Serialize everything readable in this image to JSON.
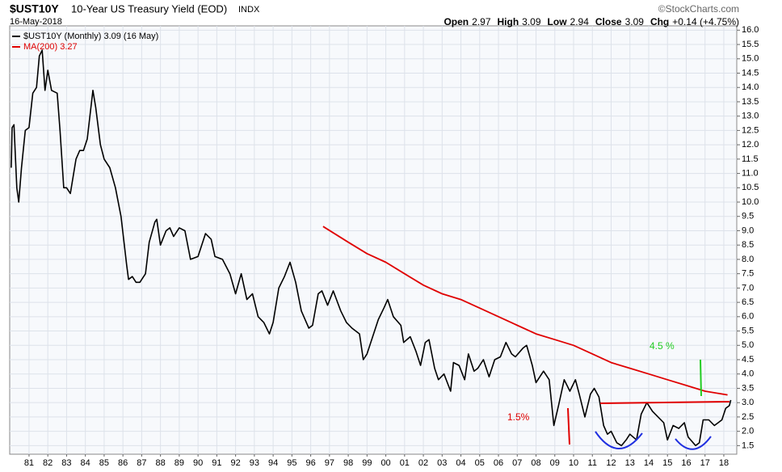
{
  "chart_data": {
    "type": "line",
    "symbol": "$UST10Y",
    "title": "10-Year US Treasury Yield (EOD)",
    "exchange": "INDX",
    "date": "16-May-2018",
    "watermark": "©StockCharts.com",
    "quote": [
      {
        "label": "Open",
        "value": "2.97"
      },
      {
        "label": "High",
        "value": "3.09"
      },
      {
        "label": "Low",
        "value": "2.94"
      },
      {
        "label": "Close",
        "value": "3.09"
      },
      {
        "label": "Chg",
        "value": "+0.14 (+4.75%)"
      }
    ],
    "annotations": [
      "1.5%",
      "4.5 %"
    ],
    "grid": true,
    "xlim": [
      1979.97,
      2018.69
    ],
    "ylim": [
      1.2,
      16.15
    ],
    "xticks": [
      {
        "value": 1981,
        "label": "81"
      },
      {
        "value": 1982,
        "label": "82"
      },
      {
        "value": 1983,
        "label": "83"
      },
      {
        "value": 1984,
        "label": "84"
      },
      {
        "value": 1985,
        "label": "85"
      },
      {
        "value": 1986,
        "label": "86"
      },
      {
        "value": 1987,
        "label": "87"
      },
      {
        "value": 1988,
        "label": "88"
      },
      {
        "value": 1989,
        "label": "89"
      },
      {
        "value": 1990,
        "label": "90"
      },
      {
        "value": 1991,
        "label": "91"
      },
      {
        "value": 1992,
        "label": "92"
      },
      {
        "value": 1993,
        "label": "93"
      },
      {
        "value": 1994,
        "label": "94"
      },
      {
        "value": 1995,
        "label": "95"
      },
      {
        "value": 1996,
        "label": "96"
      },
      {
        "value": 1997,
        "label": "97"
      },
      {
        "value": 1998,
        "label": "98"
      },
      {
        "value": 1999,
        "label": "99"
      },
      {
        "value": 2000,
        "label": "00"
      },
      {
        "value": 2001,
        "label": "01"
      },
      {
        "value": 2002,
        "label": "02"
      },
      {
        "value": 2003,
        "label": "03"
      },
      {
        "value": 2004,
        "label": "04"
      },
      {
        "value": 2005,
        "label": "05"
      },
      {
        "value": 2006,
        "label": "06"
      },
      {
        "value": 2007,
        "label": "07"
      },
      {
        "value": 2008,
        "label": "08"
      },
      {
        "value": 2009,
        "label": "09"
      },
      {
        "value": 2010,
        "label": "10"
      },
      {
        "value": 2011,
        "label": "11"
      },
      {
        "value": 2012,
        "label": "12"
      },
      {
        "value": 2013,
        "label": "13"
      },
      {
        "value": 2014,
        "label": "14"
      },
      {
        "value": 2015,
        "label": "15"
      },
      {
        "value": 2016,
        "label": "16"
      },
      {
        "value": 2017,
        "label": "17"
      },
      {
        "value": 2018,
        "label": "18"
      }
    ],
    "yticks": [
      1.5,
      {
        "value": 2,
        "label": "2.0"
      },
      2.5,
      {
        "value": 3,
        "label": "3.0"
      },
      3.5,
      {
        "value": 4,
        "label": "4.0"
      },
      4.5,
      {
        "value": 5,
        "label": "5.0"
      },
      5.5,
      {
        "value": 6,
        "label": "6.0"
      },
      6.5,
      {
        "value": 7,
        "label": "7.0"
      },
      7.5,
      {
        "value": 8,
        "label": "8.0"
      },
      8.5,
      {
        "value": 9,
        "label": "9.0"
      },
      9.5,
      {
        "value": 10,
        "label": "10.0"
      },
      10.5,
      {
        "value": 11,
        "label": "11.0"
      },
      11.5,
      {
        "value": 12,
        "label": "12.0"
      },
      12.5,
      {
        "value": 13,
        "label": "13.0"
      },
      13.5,
      {
        "value": 14,
        "label": "14.0"
      },
      14.5,
      {
        "value": 15,
        "label": "15.0"
      },
      15.5,
      {
        "value": 16,
        "label": "16.0"
      }
    ],
    "series": [
      {
        "name": "$UST10Y (Monthly) 3.09 (16 May)",
        "color": "#000000",
        "x": [
          1980.05,
          1980.1,
          1980.2,
          1980.35,
          1980.45,
          1980.6,
          1980.8,
          1981.0,
          1981.2,
          1981.4,
          1981.55,
          1981.7,
          1981.85,
          1982.0,
          1982.2,
          1982.5,
          1982.65,
          1982.85,
          1983.0,
          1983.2,
          1983.5,
          1983.7,
          1983.9,
          1984.1,
          1984.4,
          1984.55,
          1984.8,
          1985.0,
          1985.3,
          1985.6,
          1985.9,
          1986.2,
          1986.3,
          1986.5,
          1986.7,
          1986.9,
          1987.2,
          1987.4,
          1987.7,
          1987.8,
          1988.0,
          1988.3,
          1988.5,
          1988.7,
          1989.0,
          1989.3,
          1989.6,
          1990.0,
          1990.4,
          1990.7,
          1990.9,
          1991.3,
          1991.7,
          1992.0,
          1992.3,
          1992.6,
          1992.9,
          1993.2,
          1993.5,
          1993.8,
          1994.0,
          1994.3,
          1994.6,
          1994.9,
          1995.2,
          1995.5,
          1995.9,
          1996.1,
          1996.4,
          1996.6,
          1996.9,
          1997.2,
          1997.6,
          1997.9,
          1998.2,
          1998.6,
          1998.8,
          1999.0,
          1999.3,
          1999.6,
          1999.9,
          2000.1,
          2000.4,
          2000.8,
          2000.95,
          2001.3,
          2001.6,
          2001.85,
          2002.1,
          2002.3,
          2002.6,
          2002.8,
          2003.1,
          2003.45,
          2003.6,
          2003.9,
          2004.2,
          2004.4,
          2004.7,
          2004.9,
          2005.2,
          2005.5,
          2005.8,
          2006.1,
          2006.4,
          2006.7,
          2006.9,
          2007.3,
          2007.5,
          2007.8,
          2008.0,
          2008.4,
          2008.7,
          2008.95,
          2009.2,
          2009.5,
          2009.8,
          2010.1,
          2010.3,
          2010.6,
          2010.9,
          2011.1,
          2011.35,
          2011.6,
          2011.8,
          2012.0,
          2012.3,
          2012.55,
          2012.8,
          2013.0,
          2013.35,
          2013.6,
          2013.9,
          2014.2,
          2014.5,
          2014.8,
          2015.0,
          2015.3,
          2015.6,
          2015.9,
          2016.1,
          2016.5,
          2016.7,
          2016.9,
          2017.2,
          2017.5,
          2017.7,
          2017.9,
          2018.1,
          2018.3,
          2018.37
        ],
        "values": [
          11.2,
          12.6,
          12.7,
          10.5,
          10.0,
          11.2,
          12.5,
          12.6,
          13.8,
          14.0,
          15.1,
          15.3,
          13.9,
          14.6,
          13.9,
          13.8,
          12.5,
          10.5,
          10.5,
          10.3,
          11.5,
          11.8,
          11.8,
          12.2,
          13.9,
          13.3,
          12.0,
          11.5,
          11.2,
          10.5,
          9.5,
          7.8,
          7.3,
          7.4,
          7.2,
          7.2,
          7.5,
          8.6,
          9.3,
          9.4,
          8.5,
          9.0,
          9.1,
          8.8,
          9.1,
          9.0,
          8.0,
          8.1,
          8.9,
          8.7,
          8.1,
          8.0,
          7.5,
          6.8,
          7.5,
          6.6,
          6.8,
          6.0,
          5.8,
          5.4,
          5.8,
          7.0,
          7.4,
          7.9,
          7.2,
          6.2,
          5.6,
          5.7,
          6.8,
          6.9,
          6.4,
          6.9,
          6.2,
          5.8,
          5.6,
          5.4,
          4.5,
          4.7,
          5.3,
          5.9,
          6.3,
          6.6,
          6.0,
          5.7,
          5.1,
          5.3,
          4.8,
          4.3,
          5.1,
          5.2,
          4.2,
          3.8,
          4.0,
          3.4,
          4.4,
          4.3,
          3.8,
          4.7,
          4.1,
          4.2,
          4.5,
          3.9,
          4.5,
          4.6,
          5.1,
          4.7,
          4.6,
          4.9,
          5.0,
          4.3,
          3.7,
          4.1,
          3.8,
          2.2,
          2.9,
          3.8,
          3.4,
          3.8,
          3.3,
          2.5,
          3.3,
          3.5,
          3.2,
          2.2,
          1.9,
          2.0,
          1.6,
          1.5,
          1.7,
          1.9,
          1.7,
          2.6,
          3.0,
          2.7,
          2.5,
          2.3,
          1.7,
          2.2,
          2.1,
          2.3,
          1.8,
          1.5,
          1.6,
          2.4,
          2.4,
          2.2,
          2.3,
          2.4,
          2.8,
          2.9,
          3.09
        ]
      },
      {
        "name": "MA(200) 3.27",
        "color": "#e00000",
        "x": [
          1996.66,
          1998,
          1999,
          2000,
          2001,
          2002,
          2003,
          2004,
          2005,
          2006,
          2007,
          2008,
          2009,
          2010,
          2011,
          2012,
          2013,
          2014,
          2015,
          2016,
          2017,
          2018.2
        ],
        "values": [
          9.15,
          8.6,
          8.2,
          7.9,
          7.5,
          7.1,
          6.8,
          6.6,
          6.3,
          6.0,
          5.7,
          5.4,
          5.2,
          5.0,
          4.7,
          4.4,
          4.2,
          4.0,
          3.8,
          3.6,
          3.4,
          3.27
        ]
      }
    ]
  }
}
